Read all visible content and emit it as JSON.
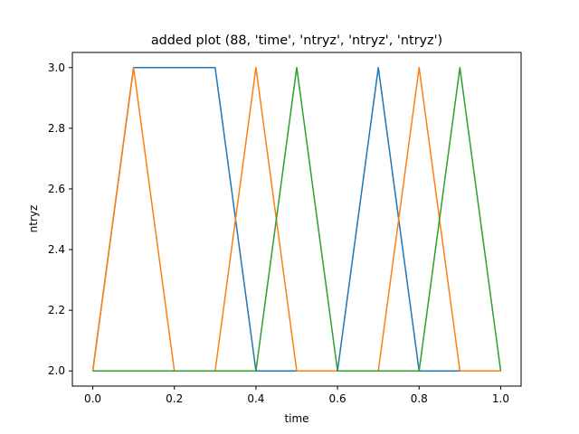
{
  "chart_data": {
    "type": "line",
    "title": "added plot (88, 'time', 'ntryz', 'ntryz', 'ntryz')",
    "xlabel": "time",
    "ylabel": "ntryz",
    "xlim": [
      -0.05,
      1.05
    ],
    "ylim": [
      1.95,
      3.05
    ],
    "xticks": [
      0.0,
      0.2,
      0.4,
      0.6,
      0.8,
      1.0
    ],
    "xtick_labels": [
      "0.0",
      "0.2",
      "0.4",
      "0.6",
      "0.8",
      "1.0"
    ],
    "yticks": [
      2.0,
      2.2,
      2.4,
      2.6,
      2.8,
      3.0
    ],
    "ytick_labels": [
      "2.0",
      "2.2",
      "2.4",
      "2.6",
      "2.8",
      "3.0"
    ],
    "grid": false,
    "x": [
      0.0,
      0.1,
      0.2,
      0.3,
      0.4,
      0.5,
      0.6,
      0.7,
      0.8,
      0.9,
      1.0
    ],
    "series": [
      {
        "color": "#1f77b4",
        "values": [
          2,
          3,
          3,
          3,
          2,
          2,
          2,
          3,
          2,
          2,
          2
        ]
      },
      {
        "color": "#ff7f0e",
        "values": [
          2,
          3,
          2,
          2,
          3,
          2,
          2,
          2,
          3,
          2,
          2
        ]
      },
      {
        "color": "#2ca02c",
        "values": [
          2,
          2,
          2,
          2,
          2,
          3,
          2,
          2,
          2,
          3,
          2
        ]
      }
    ]
  }
}
